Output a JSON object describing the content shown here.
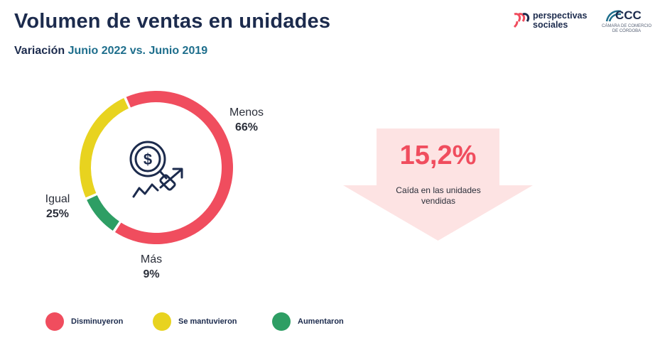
{
  "header": {
    "title": "Volumen de ventas en unidades",
    "subtitle_prefix": "Variación",
    "subtitle_accent": "Junio 2022 vs. Junio 2019"
  },
  "logos": {
    "perspectivas_line1": "perspectivas",
    "perspectivas_line2": "sociales",
    "ccc": "CCC",
    "ccc_sub_line1": "CÁMARA DE COMERCIO",
    "ccc_sub_line2": "DE CÓRDOBA"
  },
  "chart_data": {
    "type": "pie",
    "variant": "donut",
    "labels": [
      "Menos",
      "Igual",
      "Más"
    ],
    "values": [
      66,
      25,
      9
    ],
    "value_labels": [
      "66%",
      "25%",
      "9%"
    ],
    "colors": [
      "#f04d5e",
      "#e8d31f",
      "#2e9e64"
    ],
    "legend": [
      {
        "label": "Disminuyeron",
        "color": "#f04d5e"
      },
      {
        "label": "Se mantuvieron",
        "color": "#e8d31f"
      },
      {
        "label": "Aumentaron",
        "color": "#2e9e64"
      }
    ],
    "legend_position": "bottom",
    "center_icon": "dollar-magnifier-growth-icon"
  },
  "highlight": {
    "value": "15,2%",
    "caption_line1": "Caída en las unidades",
    "caption_line2": "vendidas",
    "arrow_color": "#fde3e3",
    "value_color": "#f04d5e"
  }
}
